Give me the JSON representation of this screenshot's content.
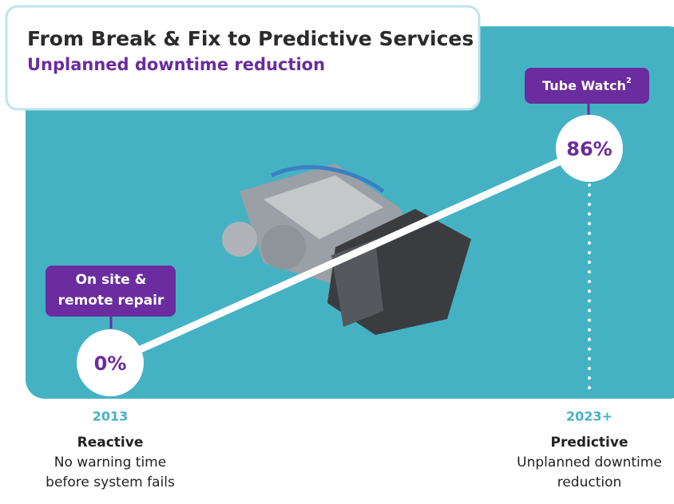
{
  "header": {
    "title": "From Break & Fix to Predictive Services",
    "subtitle": "Unplanned downtime reduction"
  },
  "milestones": [
    {
      "badge_lines": [
        "On site &",
        "remote repair"
      ],
      "value": "0%",
      "year": "2013",
      "stage": "Reactive",
      "description_lines": [
        "No warning time",
        "before system fails"
      ]
    },
    {
      "badge_lines": [
        "Tube Watch"
      ],
      "badge_sup": "2",
      "value": "86%",
      "year": "2023+",
      "stage": "Predictive",
      "description_lines": [
        "Unplanned downtime",
        "reduction"
      ]
    }
  ]
}
